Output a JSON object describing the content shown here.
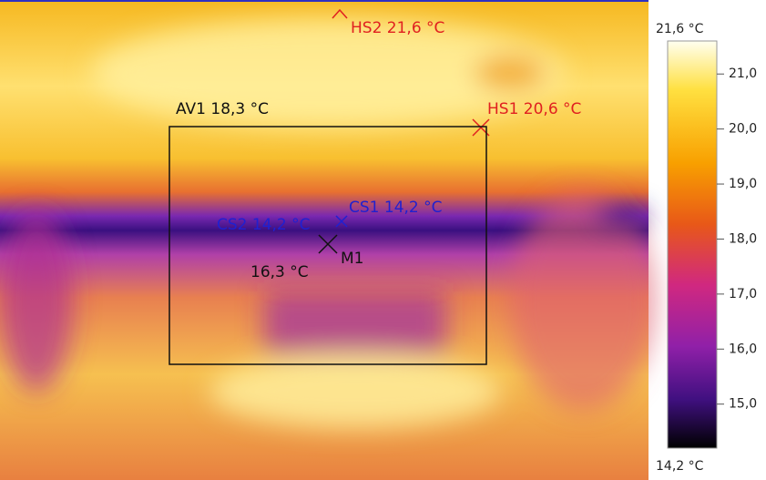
{
  "image": {
    "markers": [
      {
        "id": "HS2",
        "label": "HS2 21,6 °C"
      },
      {
        "id": "HS1",
        "label": "HS1 20,6 °C"
      },
      {
        "id": "AV1",
        "label": "AV1 18,3 °C"
      },
      {
        "id": "CS1",
        "label": "CS1 14,2 °C"
      },
      {
        "id": "CS2",
        "label": "CS2 14,2 °C"
      },
      {
        "id": "M1",
        "label": "M1",
        "reading": "16,3 °C"
      }
    ]
  },
  "scale": {
    "top": {
      "value": 21.6,
      "label": "21,6 °C"
    },
    "bottom": {
      "value": 14.2,
      "label": "14,2 °C"
    },
    "ticks": [
      {
        "value": 21,
        "label": "21,0"
      },
      {
        "value": 20,
        "label": "20,0"
      },
      {
        "value": 19,
        "label": "19,0"
      },
      {
        "value": 18,
        "label": "18,0"
      },
      {
        "value": 17,
        "label": "17,0"
      },
      {
        "value": 16,
        "label": "16,0"
      },
      {
        "value": 15,
        "label": "15,0"
      }
    ]
  }
}
